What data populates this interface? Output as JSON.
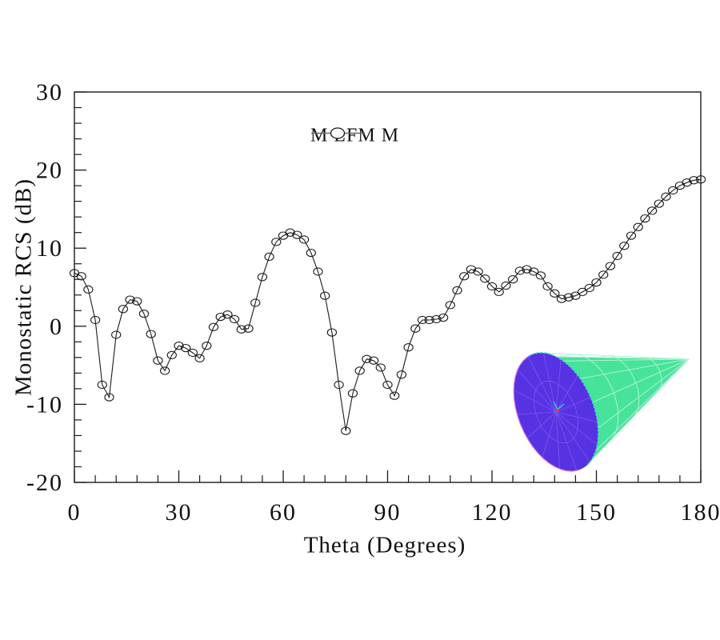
{
  "frame": {
    "background": "#ffffff",
    "axis_color": "#1a1a1a"
  },
  "chart_data": {
    "type": "line",
    "title": "",
    "xlabel": "Theta (Degrees)",
    "ylabel": "Monostatic RCS (dB)",
    "xlim": [
      0,
      180
    ],
    "ylim": [
      -20,
      30
    ],
    "x_major_ticks": [
      0,
      30,
      60,
      90,
      120,
      150,
      180
    ],
    "x_minor_step": 6,
    "y_major_ticks": [
      -20,
      -10,
      0,
      10,
      20,
      30
    ],
    "y_minor_step": 2,
    "grid": false,
    "legend": {
      "label": "M LFM M",
      "marker": "open-circle",
      "position": "top-center-inside"
    },
    "series": [
      {
        "name": "M LFM M",
        "marker": "open-circle",
        "color": "#1a1a1a",
        "x": [
          0,
          2,
          4,
          6,
          8,
          10,
          12,
          14,
          16,
          18,
          20,
          22,
          24,
          26,
          28,
          30,
          32,
          34,
          36,
          38,
          40,
          42,
          44,
          46,
          48,
          50,
          52,
          54,
          56,
          58,
          60,
          62,
          64,
          66,
          68,
          70,
          72,
          74,
          76,
          78,
          80,
          82,
          84,
          86,
          88,
          90,
          92,
          94,
          96,
          98,
          100,
          102,
          104,
          106,
          108,
          110,
          112,
          114,
          116,
          118,
          120,
          122,
          124,
          126,
          128,
          130,
          132,
          134,
          136,
          138,
          140,
          142,
          144,
          146,
          148,
          150,
          152,
          154,
          156,
          158,
          160,
          162,
          164,
          166,
          168,
          170,
          172,
          174,
          176,
          178,
          180
        ],
        "y": [
          6.8,
          6.4,
          4.7,
          0.8,
          -7.5,
          -9.1,
          -1.1,
          2.2,
          3.4,
          3.2,
          1.6,
          -1.0,
          -4.4,
          -5.7,
          -3.7,
          -2.5,
          -2.8,
          -3.4,
          -4.1,
          -2.5,
          -0.1,
          1.2,
          1.5,
          0.9,
          -0.4,
          -0.3,
          3.0,
          6.3,
          8.9,
          10.8,
          11.6,
          12.0,
          11.7,
          11.1,
          9.4,
          7.0,
          3.9,
          -0.8,
          -7.5,
          -13.4,
          -8.6,
          -5.7,
          -4.2,
          -4.4,
          -5.3,
          -7.5,
          -8.9,
          -6.2,
          -2.7,
          -0.3,
          0.8,
          0.8,
          0.9,
          1.1,
          2.7,
          4.6,
          6.4,
          7.3,
          7.0,
          6.1,
          5.1,
          4.4,
          5.2,
          6.0,
          7.1,
          7.3,
          7.0,
          6.5,
          5.1,
          4.2,
          3.5,
          3.7,
          3.9,
          4.4,
          4.9,
          5.6,
          6.6,
          7.7,
          9.0,
          10.3,
          11.6,
          12.7,
          13.8,
          14.8,
          15.7,
          16.6,
          17.4,
          18.0,
          18.4,
          18.7,
          18.8
        ]
      }
    ]
  },
  "inset": {
    "name": "cone-mesh-model",
    "description": "triangular surface mesh of a cone, apex pointing right, circular base facing viewer",
    "position": "lower-right-inside-axes",
    "colors": {
      "lateral_surface": "#47e39b",
      "lateral_mesh": "#aef2d2",
      "base_face": "#5632e2",
      "base_mesh": "#7b57f0",
      "rim": "#38d8cc",
      "base_edge_highlight": "#e57fd8",
      "axis_glyph_cyan": "#2fc8e8",
      "axis_glyph_red": "#d9413f"
    }
  }
}
